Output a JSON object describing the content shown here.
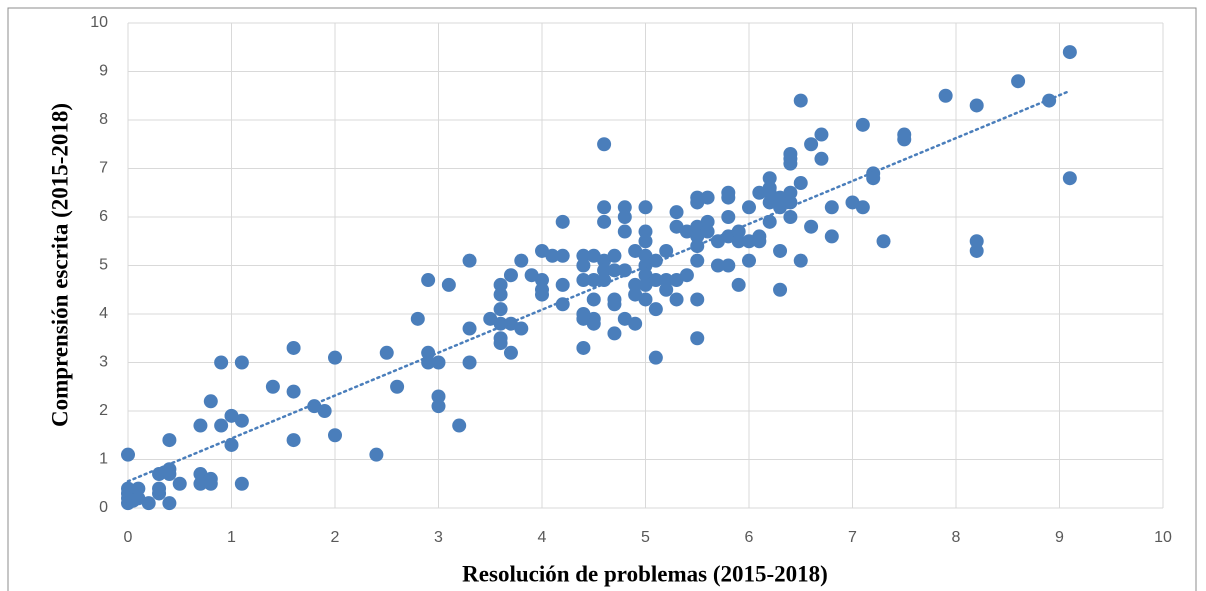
{
  "chart_data": {
    "type": "scatter",
    "xlabel": "Resolución de problemas (2015-2018)",
    "ylabel": "Comprensión escrita (2015-2018)",
    "xlim": [
      0,
      10
    ],
    "xticks": [
      0,
      1,
      2,
      3,
      4,
      5,
      6,
      7,
      8,
      9,
      10
    ],
    "ylim": [
      0,
      10
    ],
    "yticks": [
      0,
      1,
      2,
      3,
      4,
      5,
      6,
      7,
      8,
      9,
      10
    ],
    "grid": true,
    "series": [
      {
        "color": "#4a7ebb",
        "x": [
          0,
          0,
          0,
          0,
          0,
          0.05,
          0.1,
          0.1,
          0.2,
          0.3,
          0.3,
          0.3,
          0.4,
          0.4,
          0.4,
          0.4,
          0.5,
          0.7,
          0.7,
          0.7,
          0.8,
          0.8,
          0.8,
          0.9,
          0.9,
          1.0,
          1.0,
          1.1,
          1.1,
          1.1,
          1.4,
          1.6,
          1.6,
          1.6,
          1.8,
          1.9,
          2.0,
          2.0,
          2.4,
          2.5,
          2.6,
          2.8,
          2.9,
          2.9,
          2.9,
          3.0,
          3.0,
          3.0,
          3.1,
          3.2,
          3.3,
          3.3,
          3.3,
          3.5,
          3.6,
          3.6,
          3.6,
          3.6,
          3.6,
          3.6,
          3.7,
          3.7,
          3.7,
          3.8,
          3.8,
          3.9,
          4.0,
          4.0,
          4.0,
          4.0,
          4.1,
          4.2,
          4.2,
          4.2,
          4.2,
          4.4,
          4.4,
          4.4,
          4.4,
          4.4,
          4.4,
          4.5,
          4.5,
          4.5,
          4.5,
          4.5,
          4.6,
          4.6,
          4.6,
          4.6,
          4.6,
          4.6,
          4.7,
          4.7,
          4.7,
          4.7,
          4.7,
          4.8,
          4.8,
          4.8,
          4.8,
          4.8,
          4.9,
          4.9,
          4.9,
          4.9,
          5.0,
          5.0,
          5.0,
          5.0,
          5.0,
          5.0,
          5.0,
          5.0,
          5.1,
          5.1,
          5.1,
          5.1,
          5.2,
          5.2,
          5.2,
          5.3,
          5.3,
          5.3,
          5.3,
          5.4,
          5.4,
          5.5,
          5.5,
          5.5,
          5.5,
          5.5,
          5.5,
          5.5,
          5.5,
          5.6,
          5.6,
          5.6,
          5.7,
          5.7,
          5.8,
          5.8,
          5.8,
          5.8,
          5.8,
          5.9,
          5.9,
          5.9,
          6.0,
          6.0,
          6.0,
          6.1,
          6.1,
          6.1,
          6.2,
          6.2,
          6.2,
          6.2,
          6.2,
          6.3,
          6.3,
          6.3,
          6.3,
          6.4,
          6.4,
          6.4,
          6.4,
          6.4,
          6.4,
          6.5,
          6.5,
          6.5,
          6.6,
          6.6,
          6.7,
          6.7,
          6.8,
          6.8,
          7.0,
          7.1,
          7.1,
          7.2,
          7.2,
          7.3,
          7.5,
          7.5,
          7.9,
          8.2,
          8.2,
          8.2,
          8.6,
          8.9,
          9.1,
          9.1
        ],
        "values": [
          1.1,
          0.4,
          0.3,
          0.2,
          0.1,
          0.15,
          0.4,
          0.2,
          0.1,
          0.3,
          0.4,
          0.7,
          0.8,
          0.7,
          0.1,
          1.4,
          0.5,
          0.7,
          0.5,
          1.7,
          0.6,
          0.5,
          2.2,
          1.7,
          3.0,
          1.9,
          1.3,
          1.8,
          3.0,
          0.5,
          2.5,
          3.3,
          2.4,
          1.4,
          2.1,
          2.0,
          3.1,
          1.5,
          1.1,
          3.2,
          2.5,
          3.9,
          4.7,
          3.2,
          3.0,
          3.0,
          2.3,
          2.1,
          4.6,
          1.7,
          5.1,
          3.7,
          3.0,
          3.9,
          4.6,
          4.4,
          4.1,
          3.8,
          3.5,
          3.4,
          4.8,
          3.8,
          3.2,
          5.1,
          3.7,
          4.8,
          5.3,
          4.7,
          4.5,
          4.4,
          5.2,
          5.9,
          5.2,
          4.6,
          4.2,
          5.2,
          5.0,
          4.7,
          4.0,
          3.9,
          3.3,
          5.2,
          4.7,
          4.3,
          3.9,
          3.8,
          7.5,
          6.2,
          5.9,
          5.1,
          4.9,
          4.7,
          5.2,
          4.9,
          4.3,
          4.2,
          3.6,
          6.2,
          6.0,
          5.7,
          4.9,
          3.9,
          5.3,
          4.6,
          4.4,
          3.8,
          6.2,
          5.7,
          5.5,
          5.2,
          5.0,
          4.8,
          4.6,
          4.3,
          5.1,
          4.7,
          4.1,
          3.1,
          5.3,
          4.7,
          4.5,
          6.1,
          5.8,
          4.7,
          4.3,
          5.7,
          4.8,
          6.4,
          6.3,
          5.8,
          5.6,
          5.4,
          5.1,
          4.3,
          3.5,
          6.4,
          5.9,
          5.7,
          5.5,
          5.0,
          6.5,
          6.4,
          6.0,
          5.6,
          5.0,
          5.7,
          5.5,
          4.6,
          6.2,
          5.5,
          5.1,
          6.5,
          5.6,
          5.5,
          6.8,
          6.6,
          6.5,
          6.3,
          5.9,
          6.4,
          6.2,
          5.3,
          4.5,
          7.3,
          7.2,
          7.1,
          6.5,
          6.3,
          6.0,
          8.4,
          6.7,
          5.1,
          7.5,
          5.8,
          7.7,
          7.2,
          6.2,
          5.6,
          6.3,
          7.9,
          6.2,
          6.9,
          6.8,
          5.5,
          7.7,
          7.6,
          8.5,
          8.3,
          5.5,
          5.3,
          8.8,
          8.4,
          9.4,
          6.8
        ]
      }
    ],
    "trendline": {
      "color": "#4a7ebb",
      "x": [
        0,
        9.1
      ],
      "values": [
        0.55,
        8.6
      ]
    }
  }
}
